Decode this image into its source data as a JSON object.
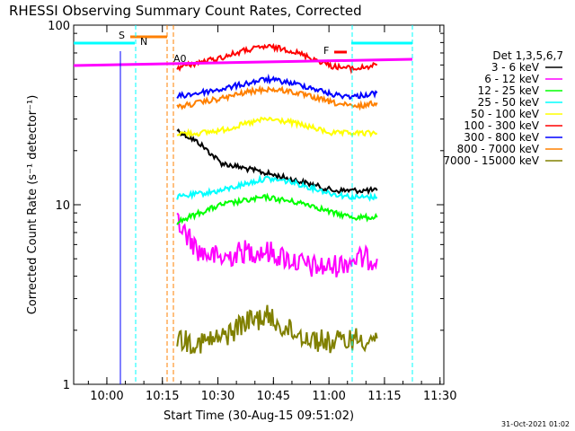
{
  "chart_data": {
    "type": "line",
    "title": "RHESSI Observing Summary Count Rates, Corrected",
    "xlabel": "Start Time (30-Aug-15 09:51:02)",
    "ylabel": "Corrected Count Rate (s⁻¹ detector⁻¹)",
    "yscale": "log",
    "ylim": [
      1,
      100
    ],
    "xlim": [
      "09:51:02",
      "11:31:02"
    ],
    "x_ticks": [
      "10:00",
      "10:15",
      "10:30",
      "10:45",
      "11:00",
      "11:15",
      "11:30"
    ],
    "y_ticks": [
      "1",
      "10",
      "100"
    ],
    "legend": {
      "title": "Det 1,3,5,6,7",
      "placement": "right"
    },
    "series": [
      {
        "name": "3 - 6 keV",
        "color": "#000000",
        "x": [
          "10:19",
          "10:25",
          "10:31",
          "10:37",
          "10:43",
          "10:49",
          "10:55",
          "11:01",
          "11:07",
          "11:13"
        ],
        "values": [
          26,
          22,
          17,
          16,
          15,
          14,
          13,
          12,
          12,
          12
        ]
      },
      {
        "name": "6 - 12 keV",
        "color": "#ff00ff",
        "x": [
          "10:19",
          "10:25",
          "10:31",
          "10:37",
          "10:43",
          "10:49",
          "10:55",
          "11:01",
          "11:07",
          "11:13"
        ],
        "values": [
          8,
          5.5,
          5,
          5.5,
          5.5,
          5,
          4.5,
          4.5,
          5,
          5
        ]
      },
      {
        "name": "12 - 25 keV",
        "color": "#00ff00",
        "x": [
          "10:19",
          "10:25",
          "10:31",
          "10:37",
          "10:43",
          "10:49",
          "10:55",
          "11:01",
          "11:07",
          "11:13"
        ],
        "values": [
          8,
          9,
          10,
          10.5,
          11,
          10.5,
          10,
          9,
          8.5,
          8.5
        ]
      },
      {
        "name": "25 - 50 keV",
        "color": "#00ffff",
        "x": [
          "10:19",
          "10:25",
          "10:31",
          "10:37",
          "10:43",
          "10:49",
          "10:55",
          "11:01",
          "11:07",
          "11:13"
        ],
        "values": [
          11,
          11.5,
          12,
          13,
          14,
          13.5,
          12.5,
          11.5,
          11,
          11
        ]
      },
      {
        "name": "50 - 100 keV",
        "color": "#ffff00",
        "x": [
          "10:19",
          "10:25",
          "10:31",
          "10:37",
          "10:43",
          "10:49",
          "10:55",
          "11:01",
          "11:07",
          "11:13"
        ],
        "values": [
          25,
          25,
          26,
          28,
          30,
          29,
          27,
          25,
          25,
          25
        ]
      },
      {
        "name": "100 - 300 keV",
        "color": "#ff0000",
        "x": [
          "10:19",
          "10:25",
          "10:31",
          "10:37",
          "10:43",
          "10:49",
          "10:55",
          "11:01",
          "11:07",
          "11:13"
        ],
        "values": [
          58,
          62,
          66,
          72,
          76,
          73,
          66,
          59,
          57,
          60
        ]
      },
      {
        "name": "300 - 800 keV",
        "color": "#0000ff",
        "x": [
          "10:19",
          "10:25",
          "10:31",
          "10:37",
          "10:43",
          "10:49",
          "10:55",
          "11:01",
          "11:07",
          "11:13"
        ],
        "values": [
          40,
          42,
          44,
          47,
          50,
          48,
          45,
          41,
          40,
          42
        ]
      },
      {
        "name": "800 - 7000 keV",
        "color": "#ff8000",
        "x": [
          "10:19",
          "10:25",
          "10:31",
          "10:37",
          "10:43",
          "10:49",
          "10:55",
          "11:01",
          "11:07",
          "11:13"
        ],
        "values": [
          35,
          37,
          39,
          42,
          44,
          43,
          40,
          37,
          35,
          37
        ]
      },
      {
        "name": "7000 - 15000 keV",
        "color": "#808000",
        "x": [
          "10:19",
          "10:25",
          "10:31",
          "10:37",
          "10:43",
          "10:49",
          "10:55",
          "11:01",
          "11:07",
          "11:13"
        ],
        "values": [
          1.8,
          1.7,
          1.8,
          2.2,
          2.4,
          2.0,
          1.8,
          1.7,
          1.8,
          1.8
        ]
      }
    ],
    "annotations": [
      {
        "text": "S",
        "color": "#ff8000"
      },
      {
        "text": "N",
        "color": "#00ffff"
      },
      {
        "text": "A0",
        "color": "#ff0000"
      },
      {
        "text": "F",
        "color": "#ff0000"
      }
    ],
    "footer": "31-Oct-2021 01:02"
  }
}
